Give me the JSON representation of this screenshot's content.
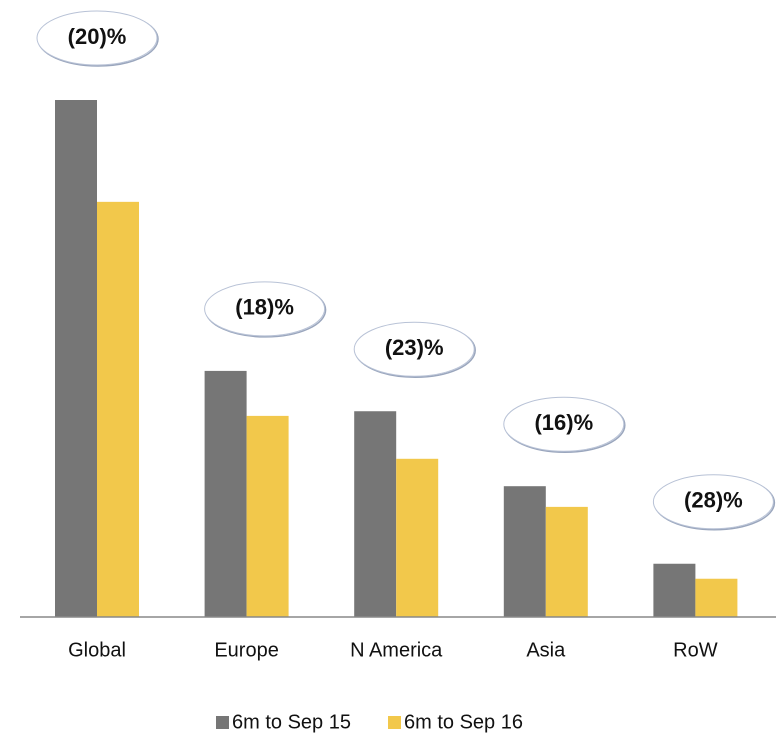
{
  "chart_data": {
    "type": "bar",
    "categories": [
      "Global",
      "Europe",
      "N America",
      "Asia",
      "RoW"
    ],
    "series": [
      {
        "name": "6m to Sep 15",
        "color": "#767676",
        "values": [
          100,
          47.6,
          39.8,
          25.3,
          10.3
        ]
      },
      {
        "name": "6m to Sep 16",
        "color": "#f2c84b",
        "values": [
          80.3,
          38.9,
          30.6,
          21.3,
          7.4
        ]
      }
    ],
    "annotations": [
      "(20)%",
      "(18)%",
      "(23)%",
      "(16)%",
      "(28)%"
    ],
    "ylim": [
      0,
      100
    ]
  }
}
